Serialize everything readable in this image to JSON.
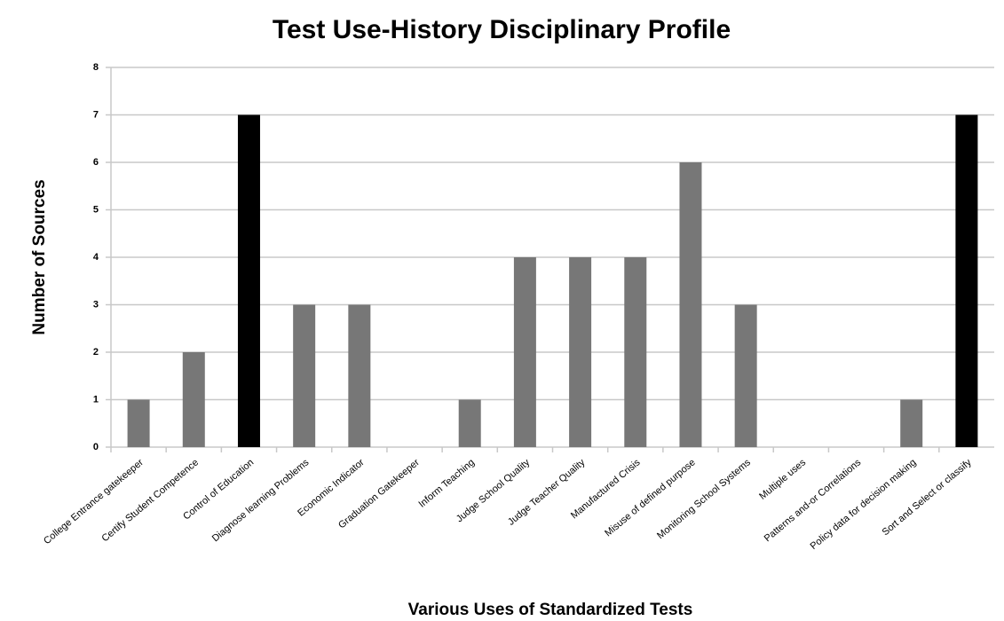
{
  "chart_data": {
    "type": "bar",
    "title": "Test Use-History Disciplinary Profile",
    "x_label": "Various Uses of Standardized Tests",
    "y_label": "Number of Sources",
    "categories": [
      "College Entrance gatekeeper",
      "Certify Student Competence",
      "Control of Education",
      "Diagnose learning Problems",
      "Economic Indicator",
      "Graduation Gatekeeper",
      "Inform Teaching",
      "Judge School Quality",
      "Judge Teacher Quality",
      "Manufactured Crisis",
      "Misuse of defined purpose",
      "Monitoring School Systems",
      "Multiple uses",
      "Patterns and-or Correlations",
      "Policy data for decision making",
      "Sort and Select or classify"
    ],
    "values": [
      1,
      2,
      7,
      3,
      3,
      0,
      1,
      4,
      4,
      4,
      6,
      3,
      0,
      0,
      1,
      7
    ],
    "colors": [
      "#777777",
      "#777777",
      "#000000",
      "#777777",
      "#777777",
      "#777777",
      "#777777",
      "#777777",
      "#777777",
      "#777777",
      "#777777",
      "#777777",
      "#777777",
      "#777777",
      "#777777",
      "#000000"
    ],
    "ylim": [
      0,
      8
    ],
    "yticks": [
      0,
      1,
      2,
      3,
      4,
      5,
      6,
      7,
      8
    ],
    "grid": true
  }
}
